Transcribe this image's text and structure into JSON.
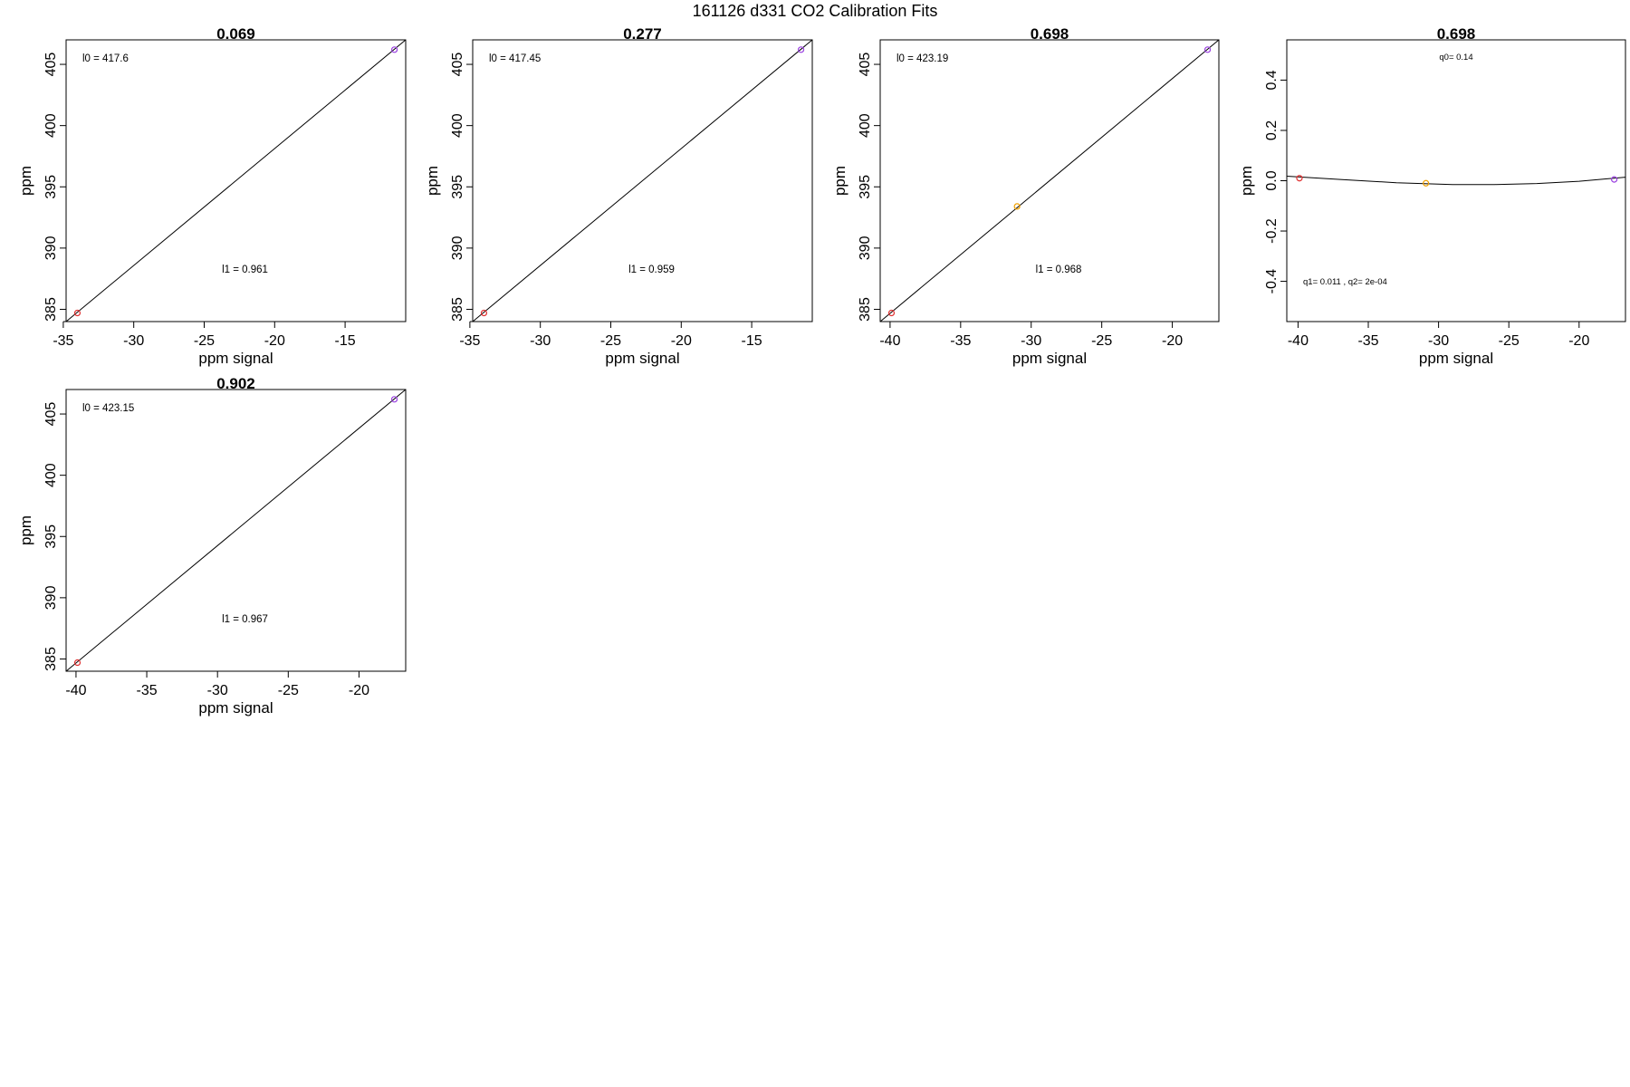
{
  "figure": {
    "title": "161126   d331   CO2 Calibration Fits"
  },
  "chart_data": [
    {
      "type": "scatter",
      "title": "0.069",
      "xlabel": "ppm signal",
      "ylabel": "ppm",
      "xlim": [
        -34.8,
        -10.7
      ],
      "ylim": [
        384.0,
        407.0
      ],
      "xticks": [
        -35,
        -30,
        -25,
        -20,
        -15
      ],
      "yticks": [
        385,
        390,
        395,
        400,
        405
      ],
      "points": [
        {
          "x": -34.0,
          "y": 384.7,
          "color": "#e03030"
        },
        {
          "x": -11.5,
          "y": 406.2,
          "color": "#9a40e0"
        }
      ],
      "fit_line": {
        "x": [
          -34.8,
          -10.7
        ],
        "y": [
          384.0,
          407.0
        ]
      },
      "annotations": [
        {
          "id": "intercept",
          "text": "l0 =  417.6",
          "pos": "top-left"
        },
        {
          "id": "slope",
          "text": "l1 =  0.961",
          "pos": "lower-center"
        }
      ]
    },
    {
      "type": "scatter",
      "title": "0.277",
      "xlabel": "ppm signal",
      "ylabel": "ppm",
      "xlim": [
        -34.8,
        -10.7
      ],
      "ylim": [
        384.0,
        407.0
      ],
      "xticks": [
        -35,
        -30,
        -25,
        -20,
        -15
      ],
      "yticks": [
        385,
        390,
        395,
        400,
        405
      ],
      "points": [
        {
          "x": -34.0,
          "y": 384.7,
          "color": "#e03030"
        },
        {
          "x": -11.5,
          "y": 406.2,
          "color": "#9a40e0"
        }
      ],
      "fit_line": {
        "x": [
          -34.8,
          -10.7
        ],
        "y": [
          384.0,
          407.0
        ]
      },
      "annotations": [
        {
          "id": "intercept",
          "text": "l0 =  417.45",
          "pos": "top-left"
        },
        {
          "id": "slope",
          "text": "l1 =  0.959",
          "pos": "lower-center"
        }
      ]
    },
    {
      "type": "scatter",
      "title": "0.698",
      "xlabel": "ppm signal",
      "ylabel": "ppm",
      "xlim": [
        -40.7,
        -16.7
      ],
      "ylim": [
        384.0,
        407.0
      ],
      "xticks": [
        -40,
        -35,
        -30,
        -25,
        -20
      ],
      "yticks": [
        385,
        390,
        395,
        400,
        405
      ],
      "points": [
        {
          "x": -39.9,
          "y": 384.7,
          "color": "#e03030"
        },
        {
          "x": -31.0,
          "y": 393.4,
          "color": "#f0a000"
        },
        {
          "x": -17.5,
          "y": 406.2,
          "color": "#9a40e0"
        }
      ],
      "fit_line": {
        "x": [
          -40.7,
          -16.7
        ],
        "y": [
          384.0,
          407.0
        ]
      },
      "annotations": [
        {
          "id": "intercept",
          "text": "l0 =  423.19",
          "pos": "top-left"
        },
        {
          "id": "slope",
          "text": "l1 =  0.968",
          "pos": "lower-center"
        }
      ]
    },
    {
      "type": "scatter",
      "title": "0.698",
      "xlabel": "ppm signal",
      "ylabel": "ppm",
      "xlim": [
        -40.8,
        -16.7
      ],
      "ylim": [
        -0.56,
        0.56
      ],
      "xticks": [
        -40,
        -35,
        -30,
        -25,
        -20
      ],
      "yticks": [
        -0.4,
        -0.2,
        0.0,
        0.2,
        0.4
      ],
      "points": [
        {
          "x": -39.9,
          "y": 0.01,
          "color": "#e03030"
        },
        {
          "x": -30.9,
          "y": -0.01,
          "color": "#f0a000"
        },
        {
          "x": -17.5,
          "y": 0.005,
          "color": "#9a40e0"
        }
      ],
      "fit_curve": {
        "x": [
          -40.8,
          -37,
          -33,
          -29,
          -26,
          -23,
          -20,
          -16.7
        ],
        "y": [
          0.018,
          0.005,
          -0.008,
          -0.015,
          -0.015,
          -0.011,
          -0.002,
          0.014
        ]
      },
      "annotations": [
        {
          "id": "q0",
          "text": "q0= 0.14",
          "pos": "top-center"
        },
        {
          "id": "q1q2",
          "text": "q1= 0.011 , q2= 2e-04",
          "pos": "bottom-left"
        }
      ]
    },
    {
      "type": "scatter",
      "title": "0.902",
      "xlabel": "ppm signal",
      "ylabel": "ppm",
      "xlim": [
        -40.7,
        -16.7
      ],
      "ylim": [
        384.0,
        407.0
      ],
      "xticks": [
        -40,
        -35,
        -30,
        -25,
        -20
      ],
      "yticks": [
        385,
        390,
        395,
        400,
        405
      ],
      "points": [
        {
          "x": -39.9,
          "y": 384.7,
          "color": "#e03030"
        },
        {
          "x": -17.5,
          "y": 406.2,
          "color": "#9a40e0"
        }
      ],
      "fit_line": {
        "x": [
          -40.7,
          -16.7
        ],
        "y": [
          384.0,
          407.0
        ]
      },
      "annotations": [
        {
          "id": "intercept",
          "text": "l0 =  423.15",
          "pos": "top-left"
        },
        {
          "id": "slope",
          "text": "l1 =  0.967",
          "pos": "lower-center"
        }
      ]
    }
  ]
}
